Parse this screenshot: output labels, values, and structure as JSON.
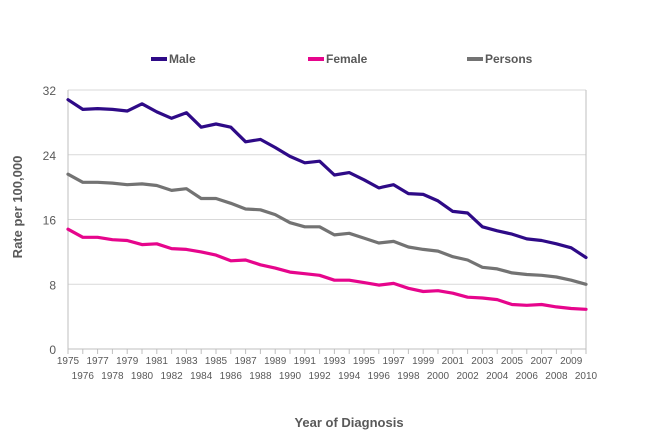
{
  "chart_data": {
    "type": "line",
    "title": "",
    "xlabel": "Year of Diagnosis",
    "ylabel": "Rate per 100,000",
    "ylim": [
      0,
      32
    ],
    "yticks": [
      0,
      8,
      16,
      24,
      32
    ],
    "grid": true,
    "legend_position": "top",
    "x": [
      1975,
      1976,
      1977,
      1978,
      1979,
      1980,
      1981,
      1982,
      1983,
      1984,
      1985,
      1986,
      1987,
      1988,
      1989,
      1990,
      1991,
      1992,
      1993,
      1994,
      1995,
      1996,
      1997,
      1998,
      1999,
      2000,
      2001,
      2002,
      2003,
      2004,
      2005,
      2006,
      2007,
      2008,
      2009,
      2010
    ],
    "series": [
      {
        "name": "Male",
        "color": "#2E0A87",
        "values": [
          30.8,
          29.6,
          29.7,
          29.6,
          29.4,
          30.3,
          29.3,
          28.5,
          29.2,
          27.4,
          27.8,
          27.4,
          25.6,
          25.9,
          24.9,
          23.8,
          23.0,
          23.2,
          21.5,
          21.8,
          20.9,
          19.9,
          20.3,
          19.2,
          19.1,
          18.3,
          17.0,
          16.8,
          15.1,
          14.6,
          14.2,
          13.6,
          13.4,
          13.0,
          12.5,
          11.3
        ],
        "label_key": "legend.male"
      },
      {
        "name": "Female",
        "color": "#E6058C",
        "values": [
          14.8,
          13.8,
          13.8,
          13.5,
          13.4,
          12.9,
          13.0,
          12.4,
          12.3,
          12.0,
          11.6,
          10.9,
          11.0,
          10.4,
          10.0,
          9.5,
          9.3,
          9.1,
          8.5,
          8.5,
          8.2,
          7.9,
          8.1,
          7.5,
          7.1,
          7.2,
          6.9,
          6.4,
          6.3,
          6.1,
          5.5,
          5.4,
          5.5,
          5.2,
          5.0,
          4.9
        ],
        "label_key": "legend.female"
      },
      {
        "name": "Persons",
        "color": "#737373",
        "values": [
          21.6,
          20.6,
          20.6,
          20.5,
          20.3,
          20.4,
          20.2,
          19.6,
          19.8,
          18.6,
          18.6,
          18.0,
          17.3,
          17.2,
          16.6,
          15.6,
          15.1,
          15.1,
          14.1,
          14.3,
          13.7,
          13.1,
          13.3,
          12.6,
          12.3,
          12.1,
          11.4,
          11.0,
          10.1,
          9.9,
          9.4,
          9.2,
          9.1,
          8.9,
          8.5,
          8.0
        ],
        "label_key": "legend.persons"
      }
    ]
  },
  "legend": {
    "male": "Male",
    "female": "Female",
    "persons": "Persons"
  }
}
